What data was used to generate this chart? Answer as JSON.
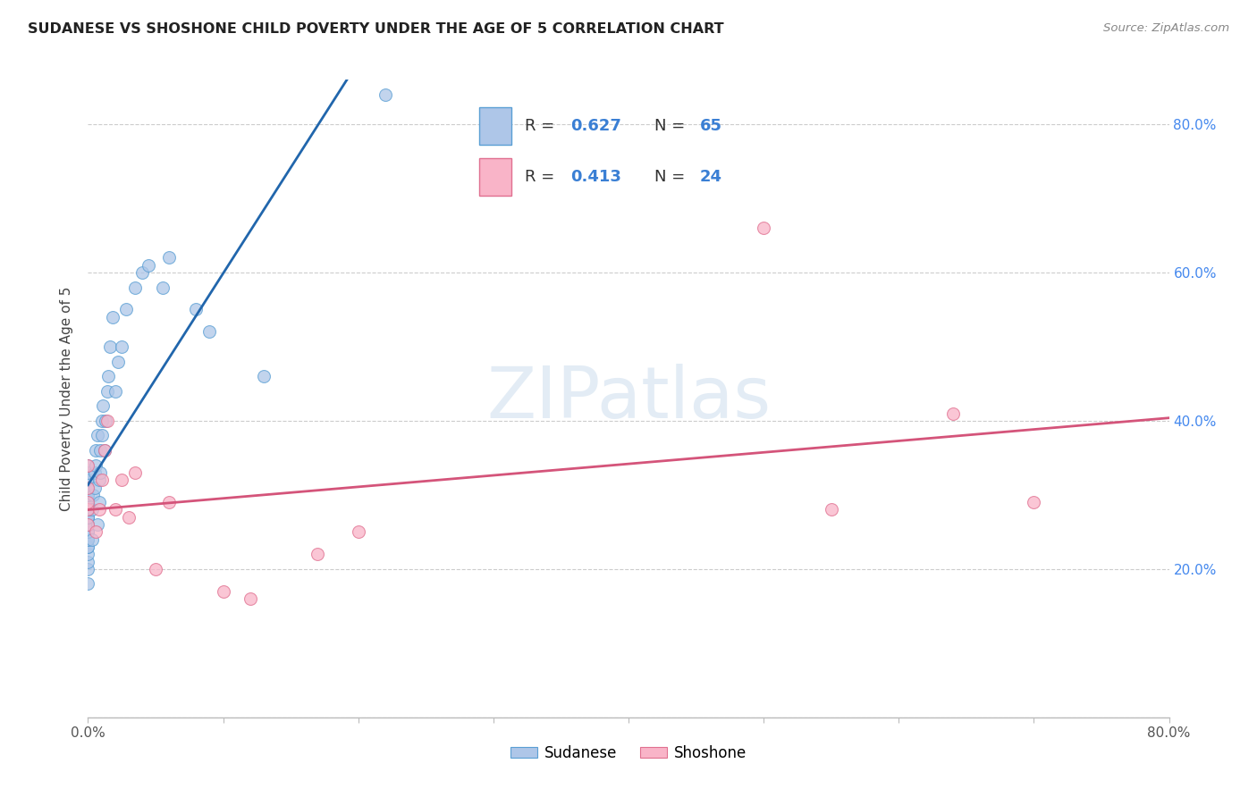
{
  "title": "SUDANESE VS SHOSHONE CHILD POVERTY UNDER THE AGE OF 5 CORRELATION CHART",
  "source": "Source: ZipAtlas.com",
  "ylabel": "Child Poverty Under the Age of 5",
  "xlim": [
    0,
    0.8
  ],
  "ylim": [
    0,
    0.86
  ],
  "watermark": "ZIPatlas",
  "blue_face": "#aec6e8",
  "blue_edge": "#5a9fd4",
  "blue_line": "#2166ac",
  "pink_face": "#f9b4c8",
  "pink_edge": "#e07090",
  "pink_line": "#d4547a",
  "text_dark": "#333333",
  "text_blue": "#3a7fd4",
  "grid_color": "#cccccc",
  "axis_color": "#bbbbbb",
  "tick_label_color": "#4488ee",
  "sudanese_x": [
    0.0,
    0.0,
    0.0,
    0.0,
    0.0,
    0.0,
    0.0,
    0.0,
    0.0,
    0.0,
    0.0,
    0.0,
    0.0,
    0.0,
    0.0,
    0.0,
    0.0,
    0.0,
    0.0,
    0.0,
    0.0,
    0.0,
    0.0,
    0.0,
    0.0,
    0.0,
    0.0,
    0.0,
    0.0,
    0.0,
    0.003,
    0.003,
    0.004,
    0.005,
    0.005,
    0.006,
    0.006,
    0.007,
    0.007,
    0.008,
    0.008,
    0.009,
    0.009,
    0.01,
    0.01,
    0.011,
    0.012,
    0.013,
    0.014,
    0.015,
    0.016,
    0.018,
    0.02,
    0.022,
    0.025,
    0.028,
    0.035,
    0.04,
    0.045,
    0.055,
    0.06,
    0.08,
    0.09,
    0.13,
    0.22
  ],
  "sudanese_y": [
    0.18,
    0.2,
    0.21,
    0.22,
    0.23,
    0.23,
    0.24,
    0.24,
    0.25,
    0.25,
    0.25,
    0.26,
    0.26,
    0.26,
    0.27,
    0.27,
    0.27,
    0.28,
    0.28,
    0.28,
    0.29,
    0.29,
    0.3,
    0.3,
    0.31,
    0.31,
    0.32,
    0.32,
    0.33,
    0.34,
    0.24,
    0.28,
    0.3,
    0.31,
    0.33,
    0.34,
    0.36,
    0.38,
    0.26,
    0.29,
    0.32,
    0.33,
    0.36,
    0.38,
    0.4,
    0.42,
    0.36,
    0.4,
    0.44,
    0.46,
    0.5,
    0.54,
    0.44,
    0.48,
    0.5,
    0.55,
    0.58,
    0.6,
    0.61,
    0.58,
    0.62,
    0.55,
    0.52,
    0.46,
    0.84
  ],
  "shoshone_x": [
    0.0,
    0.0,
    0.0,
    0.0,
    0.0,
    0.006,
    0.008,
    0.01,
    0.012,
    0.014,
    0.02,
    0.025,
    0.03,
    0.035,
    0.05,
    0.06,
    0.1,
    0.12,
    0.17,
    0.2,
    0.5,
    0.55,
    0.64,
    0.7
  ],
  "shoshone_y": [
    0.26,
    0.28,
    0.29,
    0.31,
    0.34,
    0.25,
    0.28,
    0.32,
    0.36,
    0.4,
    0.28,
    0.32,
    0.27,
    0.33,
    0.2,
    0.29,
    0.17,
    0.16,
    0.22,
    0.25,
    0.66,
    0.28,
    0.41,
    0.29
  ]
}
